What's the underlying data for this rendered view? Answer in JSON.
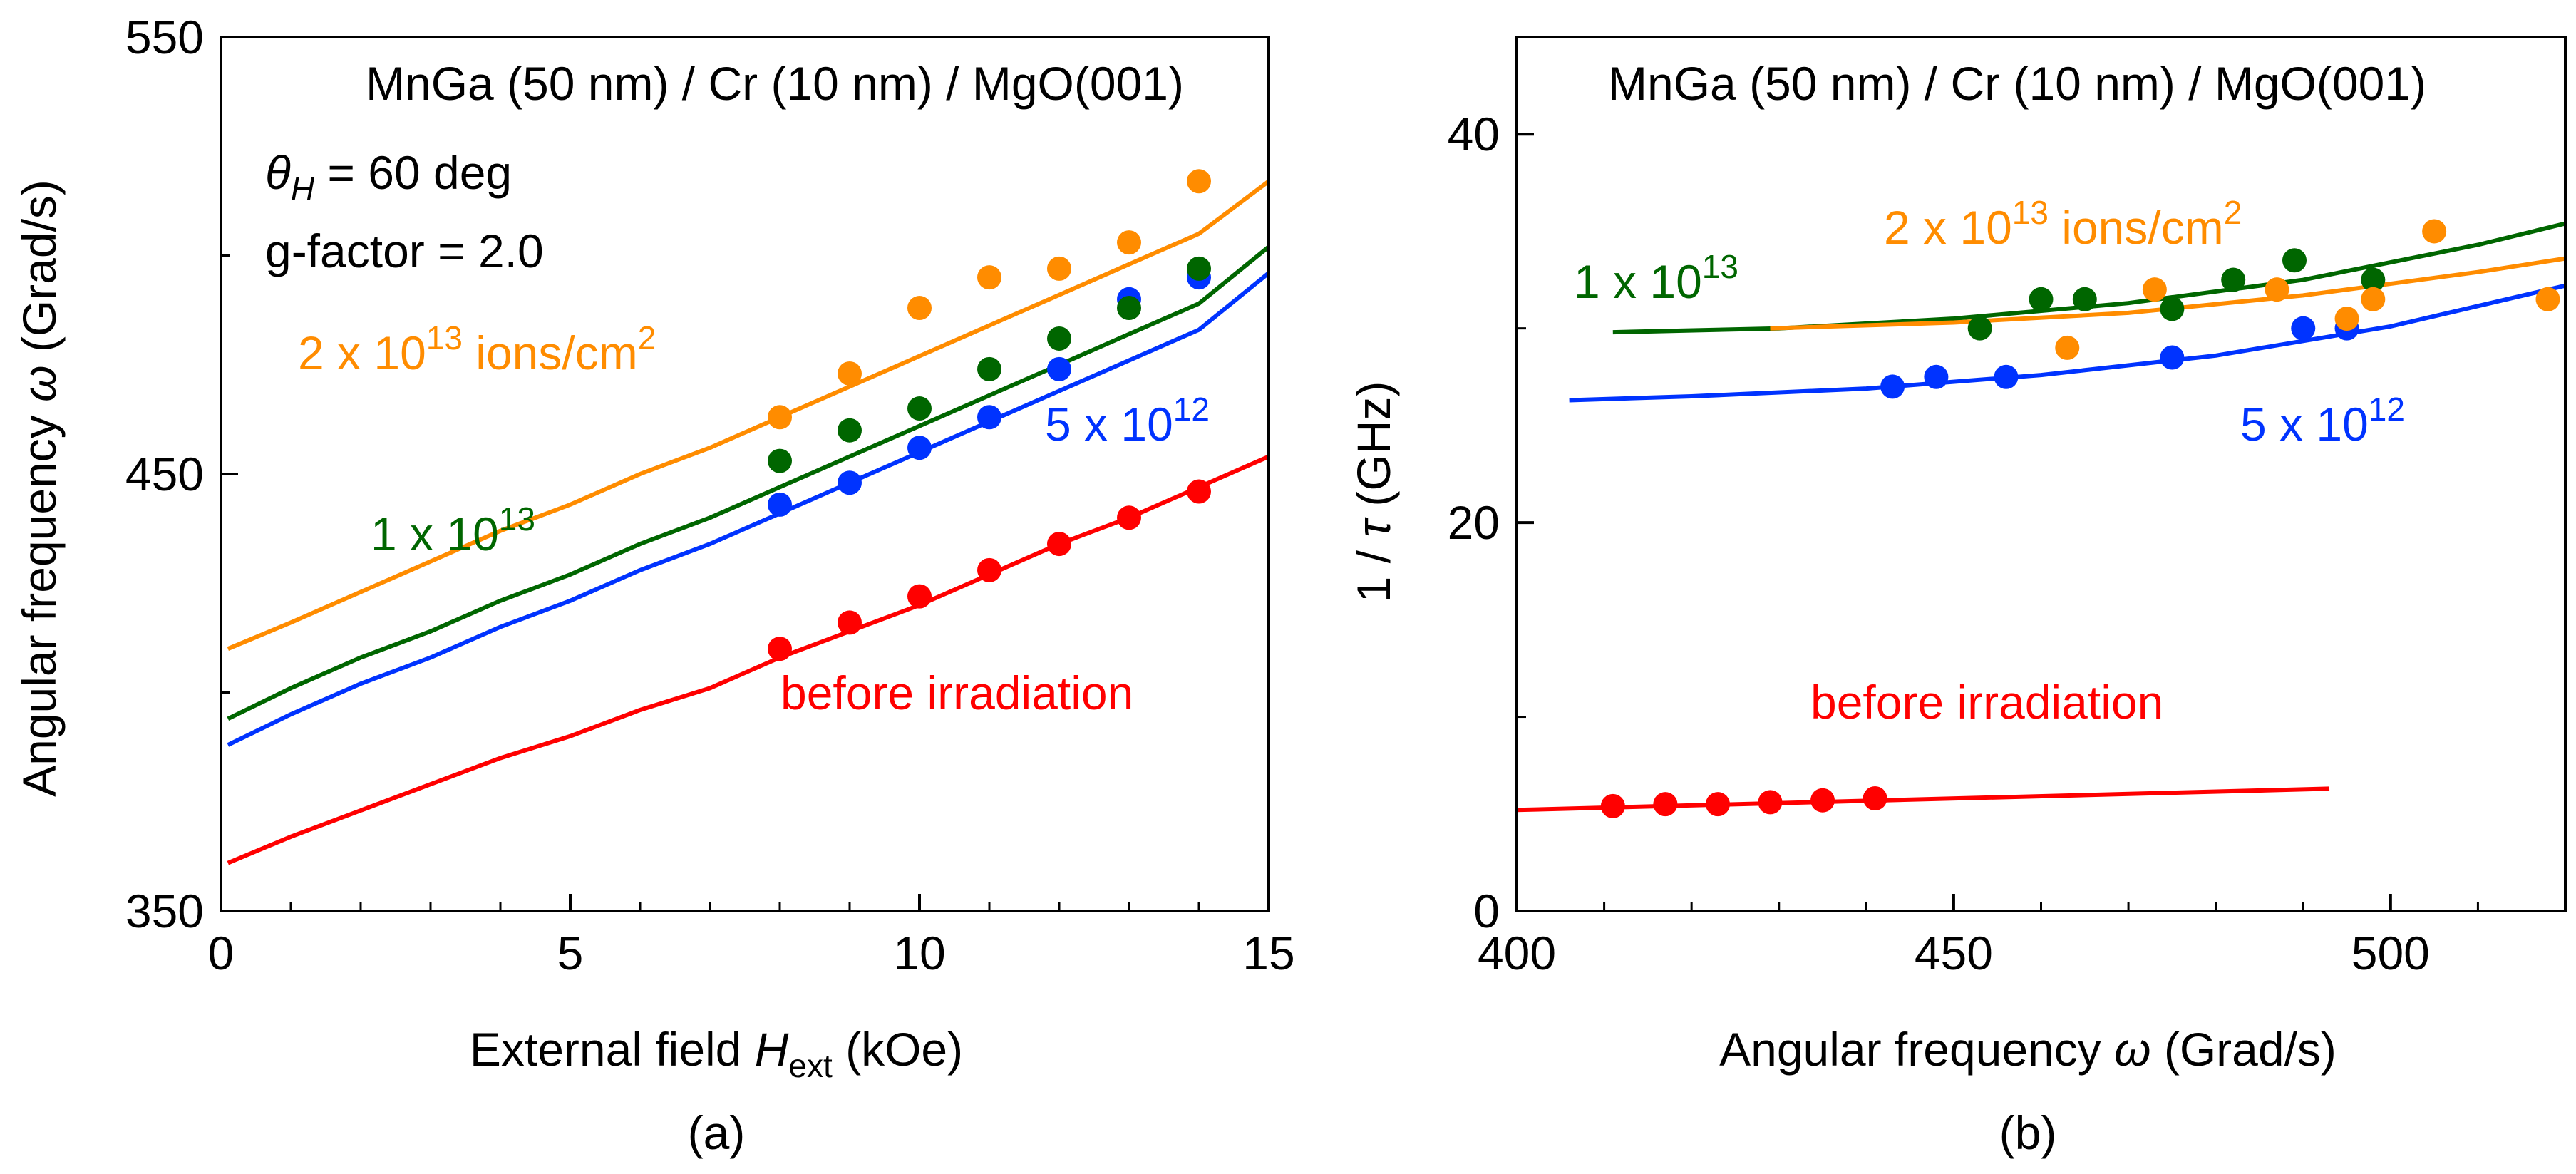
{
  "colors": {
    "before": "#ff0000",
    "e12": "#0033ff",
    "e13": "#006600",
    "e2_13": "#ff8c00",
    "axis": "#000000"
  },
  "chart_data": [
    {
      "id": "a",
      "type": "line",
      "caption": "(a)",
      "title": "MnGa (50 nm) / Cr (10 nm) / MgO(001)",
      "annotations": {
        "theta_symbol": "θ",
        "theta_sub": "H",
        "theta_rest": " = 60 deg",
        "gfactor": "g-factor = 2.0"
      },
      "xlabel": {
        "prefix": "External field ",
        "symbol": "H",
        "sub": "ext",
        "suffix": " (kOe)"
      },
      "ylabel": {
        "prefix": "Angular frequency ",
        "symbol": "ω",
        "suffix": " (Grad/s)"
      },
      "xlim": [
        0,
        15
      ],
      "ylim": [
        350,
        550
      ],
      "xticks": [
        0,
        5,
        10,
        15
      ],
      "yticks": [
        350,
        450,
        550
      ],
      "xminor": [
        1,
        2,
        3,
        4,
        6,
        7,
        8,
        9,
        11,
        12,
        13,
        14
      ],
      "yminor": [
        400,
        500
      ],
      "series": [
        {
          "key": "before",
          "label": "before irradiation",
          "label_base": "before irradiation",
          "label_sup": "",
          "label_suffix": "",
          "x": [
            8,
            9,
            10,
            11,
            12,
            13,
            14
          ],
          "y": [
            410,
            416,
            422,
            428,
            434,
            440,
            446
          ],
          "fit": [
            [
              0.1,
              361
            ],
            [
              1,
              367
            ],
            [
              2,
              373
            ],
            [
              3,
              379
            ],
            [
              4,
              385
            ],
            [
              5,
              390
            ],
            [
              6,
              396
            ],
            [
              7,
              401
            ],
            [
              8,
              408
            ],
            [
              9,
              414
            ],
            [
              10,
              420
            ],
            [
              11,
              427
            ],
            [
              12,
              434
            ],
            [
              13,
              440
            ],
            [
              14,
              447
            ],
            [
              15,
              454
            ]
          ]
        },
        {
          "key": "e12",
          "label": "5 x 10^12",
          "label_base": "5 x 10",
          "label_sup": "12",
          "label_suffix": "",
          "x": [
            8,
            9,
            10,
            11,
            12,
            13,
            14
          ],
          "y": [
            443,
            448,
            456,
            463,
            474,
            490,
            495
          ],
          "fit": [
            [
              0.1,
              388
            ],
            [
              1,
              395
            ],
            [
              2,
              402
            ],
            [
              3,
              408
            ],
            [
              4,
              415
            ],
            [
              5,
              421
            ],
            [
              6,
              428
            ],
            [
              7,
              434
            ],
            [
              8,
              441
            ],
            [
              9,
              448
            ],
            [
              10,
              455
            ],
            [
              11,
              462
            ],
            [
              12,
              469
            ],
            [
              13,
              476
            ],
            [
              14,
              483
            ],
            [
              15,
              496
            ]
          ]
        },
        {
          "key": "e13",
          "label": "1 x 10^13",
          "label_base": "1 x 10",
          "label_sup": "13",
          "label_suffix": "",
          "x": [
            8,
            9,
            10,
            11,
            12,
            13,
            14
          ],
          "y": [
            453,
            460,
            465,
            474,
            481,
            488,
            497
          ],
          "fit": [
            [
              0.1,
              394
            ],
            [
              1,
              401
            ],
            [
              2,
              408
            ],
            [
              3,
              414
            ],
            [
              4,
              421
            ],
            [
              5,
              427
            ],
            [
              6,
              434
            ],
            [
              7,
              440
            ],
            [
              8,
              447
            ],
            [
              9,
              454
            ],
            [
              10,
              461
            ],
            [
              11,
              468
            ],
            [
              12,
              475
            ],
            [
              13,
              482
            ],
            [
              14,
              489
            ],
            [
              15,
              502
            ]
          ]
        },
        {
          "key": "e2_13",
          "label": "2 x 10^13 ions/cm^2",
          "label_base": "2 x 10",
          "label_sup": "13",
          "label_suffix": " ions/cm",
          "label_sup2": "2",
          "x": [
            8,
            9,
            10,
            11,
            12,
            13,
            14
          ],
          "y": [
            463,
            473,
            488,
            495,
            497,
            503,
            517
          ],
          "fit": [
            [
              0.1,
              410
            ],
            [
              1,
              416
            ],
            [
              2,
              423
            ],
            [
              3,
              430
            ],
            [
              4,
              437
            ],
            [
              5,
              443
            ],
            [
              6,
              450
            ],
            [
              7,
              456
            ],
            [
              8,
              463
            ],
            [
              9,
              470
            ],
            [
              10,
              477
            ],
            [
              11,
              484
            ],
            [
              12,
              491
            ],
            [
              13,
              498
            ],
            [
              14,
              505
            ],
            [
              15,
              517
            ]
          ]
        }
      ]
    },
    {
      "id": "b",
      "type": "scatter",
      "caption": "(b)",
      "title": "MnGa (50 nm) / Cr (10 nm) / MgO(001)",
      "xlabel": {
        "prefix": "Angular frequency ",
        "symbol": "ω",
        "suffix": " (Grad/s)"
      },
      "ylabel": {
        "prefix": "1 / ",
        "symbol": "τ",
        "suffix": " (GHz)"
      },
      "xlim": [
        400,
        520
      ],
      "ylim": [
        0,
        45
      ],
      "xticks": [
        400,
        450,
        500
      ],
      "yticks": [
        0,
        20,
        40
      ],
      "xminor": [
        410,
        420,
        430,
        440,
        460,
        470,
        480,
        490,
        510
      ],
      "yminor": [
        10,
        30
      ],
      "series": [
        {
          "key": "before",
          "label": "before irradiation",
          "label_base": "before irradiation",
          "label_sup": "",
          "label_suffix": "",
          "x": [
            411,
            417,
            423,
            429,
            435,
            441
          ],
          "y": [
            5.4,
            5.5,
            5.5,
            5.6,
            5.7,
            5.8
          ],
          "fit": [
            [
              400,
              5.2
            ],
            [
              493,
              6.3
            ]
          ]
        },
        {
          "key": "e12",
          "label": "5 x 10^12",
          "label_base": "5 x 10",
          "label_sup": "12",
          "label_suffix": "",
          "x": [
            443,
            448,
            456,
            475,
            490,
            495
          ],
          "y": [
            27,
            27.5,
            27.5,
            28.5,
            30,
            30
          ],
          "fit": [
            [
              406,
              26.3
            ],
            [
              420,
              26.5
            ],
            [
              440,
              26.9
            ],
            [
              460,
              27.6
            ],
            [
              480,
              28.6
            ],
            [
              500,
              30.1
            ],
            [
              520,
              32.2
            ]
          ]
        },
        {
          "key": "e13",
          "label": "1 x 10^13",
          "label_base": "1 x 10",
          "label_sup": "13",
          "label_suffix": "",
          "x": [
            453,
            460,
            465,
            475,
            482,
            489,
            498
          ],
          "y": [
            30,
            31.5,
            31.5,
            31,
            32.5,
            33.5,
            32.5
          ],
          "fit": [
            [
              411,
              29.8
            ],
            [
              430,
              30.0
            ],
            [
              450,
              30.5
            ],
            [
              470,
              31.3
            ],
            [
              490,
              32.5
            ],
            [
              510,
              34.3
            ],
            [
              520,
              35.4
            ]
          ]
        },
        {
          "key": "e2_13",
          "label": "2 x 10^13 ions/cm^2",
          "label_base": "2 x 10",
          "label_sup": "13",
          "label_suffix": " ions/cm",
          "label_sup2": "2",
          "x": [
            463,
            473,
            487,
            495,
            498,
            505,
            518
          ],
          "y": [
            29,
            32,
            32,
            30.5,
            31.5,
            35,
            31.5
          ],
          "fit": [
            [
              429,
              30.0
            ],
            [
              450,
              30.3
            ],
            [
              470,
              30.8
            ],
            [
              490,
              31.7
            ],
            [
              510,
              32.9
            ],
            [
              520,
              33.6
            ]
          ]
        }
      ]
    }
  ]
}
